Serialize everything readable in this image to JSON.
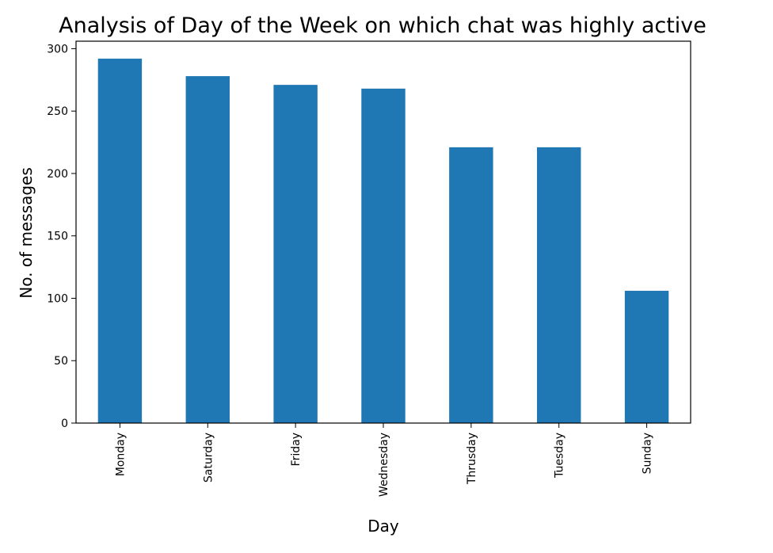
{
  "chart_data": {
    "type": "bar",
    "title": "Analysis of Day of the Week on which chat was highly active",
    "xlabel": "Day",
    "ylabel": "No. of messages",
    "categories": [
      "Monday",
      "Saturday",
      "Friday",
      "Wednesday",
      "Thrusday",
      "Tuesday",
      "Sunday"
    ],
    "values": [
      292,
      278,
      271,
      268,
      221,
      221,
      106
    ],
    "ylim": [
      0,
      306
    ],
    "yticks": [
      0,
      50,
      100,
      150,
      200,
      250,
      300
    ],
    "bar_color": "#1f77b4",
    "grid": false,
    "legend": "none"
  }
}
